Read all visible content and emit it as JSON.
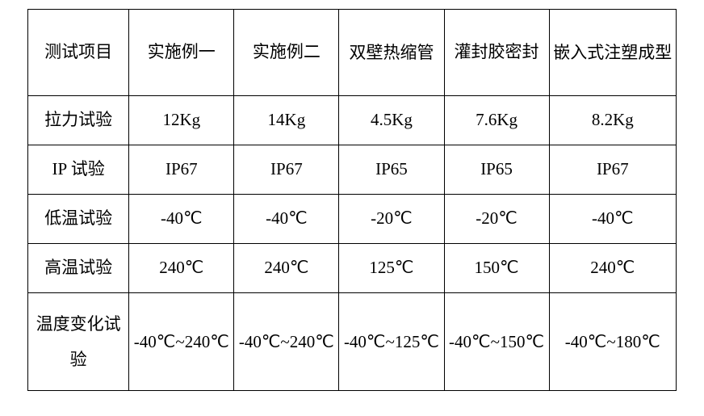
{
  "table": {
    "columns": [
      {
        "label": "测试项目",
        "width_pct": 15.6
      },
      {
        "label": "实施例一",
        "width_pct": 16.2
      },
      {
        "label": "实施例二",
        "width_pct": 16.2
      },
      {
        "label": "双壁热缩管",
        "width_pct": 16.2
      },
      {
        "label": "灌封胶密封",
        "width_pct": 16.2
      },
      {
        "label": "嵌入式注塑成型",
        "width_pct": 19.6
      }
    ],
    "rows": [
      {
        "label": "拉力试验",
        "cells": [
          "12Kg",
          "14Kg",
          "4.5Kg",
          "7.6Kg",
          "8.2Kg"
        ]
      },
      {
        "label": "IP 试验",
        "cells": [
          "IP67",
          "IP67",
          "IP65",
          "IP65",
          "IP67"
        ]
      },
      {
        "label": "低温试验",
        "cells": [
          "-40℃",
          "-40℃",
          "-20℃",
          "-20℃",
          "-40℃"
        ]
      },
      {
        "label": "高温试验",
        "cells": [
          "240℃",
          "240℃",
          "125℃",
          "150℃",
          "240℃"
        ]
      },
      {
        "label": "温度变化试验",
        "cells": [
          "-40℃~240℃",
          "-40℃~240℃",
          "-40℃~125℃",
          "-40℃~150℃",
          "-40℃~180℃"
        ]
      }
    ],
    "border_color": "#000000",
    "background_color": "#ffffff",
    "text_color": "#000000",
    "font_size_pt": 15
  }
}
